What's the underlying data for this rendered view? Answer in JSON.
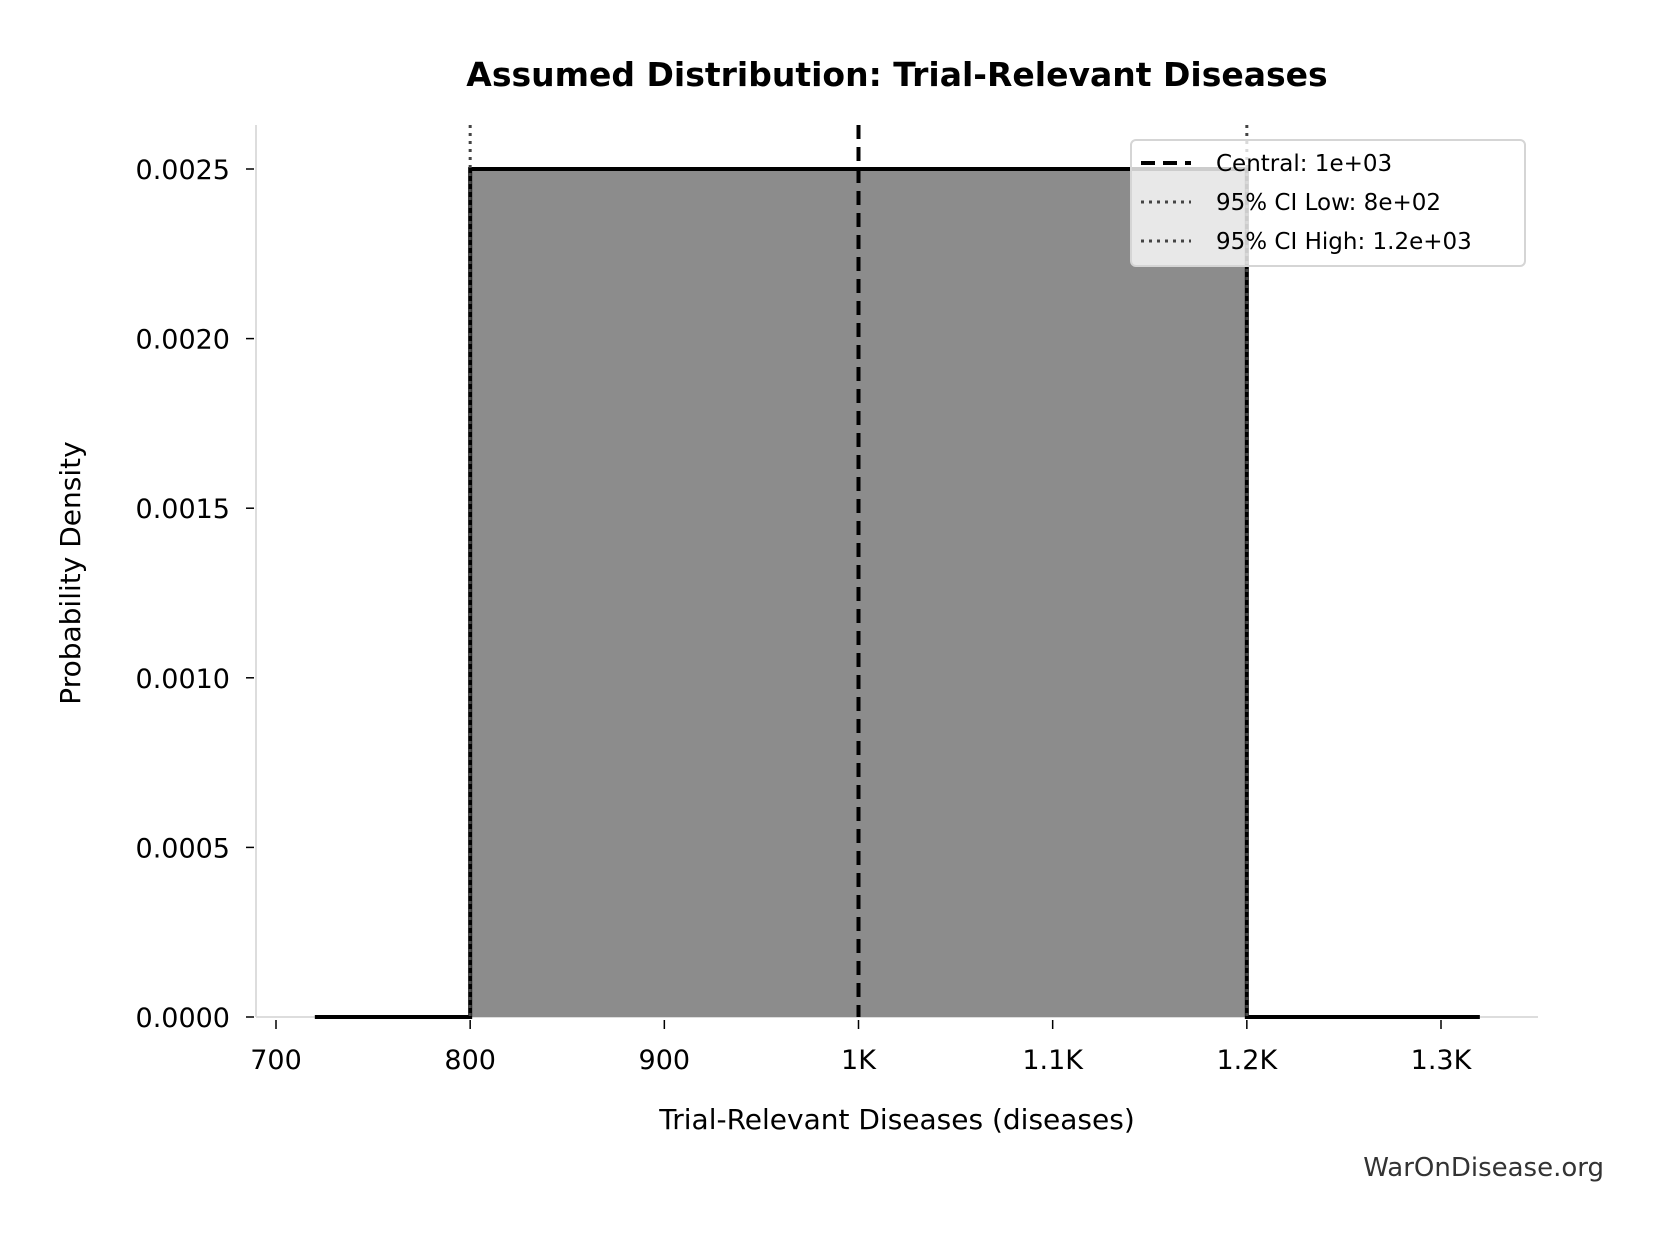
{
  "chart_data": {
    "type": "area",
    "title": "Assumed Distribution: Trial-Relevant Diseases",
    "xlabel": "Trial-Relevant Diseases (diseases)",
    "ylabel": "Probability Density",
    "xlim": [
      690,
      1350
    ],
    "ylim": [
      0,
      0.002625
    ],
    "x_ticks": [
      700,
      800,
      900,
      1000,
      1100,
      1200,
      1300
    ],
    "x_tick_labels": [
      "700",
      "800",
      "900",
      "1K",
      "1.1K",
      "1.2K",
      "1.3K"
    ],
    "y_ticks": [
      0,
      0.0005,
      0.001,
      0.0015,
      0.002,
      0.0025
    ],
    "y_tick_labels": [
      "0.0000",
      "0.0005",
      "0.0010",
      "0.0015",
      "0.0020",
      "0.0025"
    ],
    "grid": false,
    "series": [
      {
        "x": [
          720,
          800,
          800,
          1200,
          1200,
          1320
        ],
        "y": [
          0,
          0,
          0.0025,
          0.0025,
          0,
          0
        ],
        "fill": "#8c8c8c",
        "line": "#000000"
      }
    ],
    "reference_lines": [
      {
        "name": "Central: 1e+03",
        "x": 1000,
        "style": "dashed",
        "color": "#000000"
      },
      {
        "name": "95% CI Low: 8e+02",
        "x": 800,
        "style": "dotted",
        "color": "#444444"
      },
      {
        "name": "95% CI High: 1.2e+03",
        "x": 1200,
        "style": "dotted",
        "color": "#444444"
      }
    ],
    "legend_position": "top-right",
    "watermark": "WarOnDisease.org"
  }
}
